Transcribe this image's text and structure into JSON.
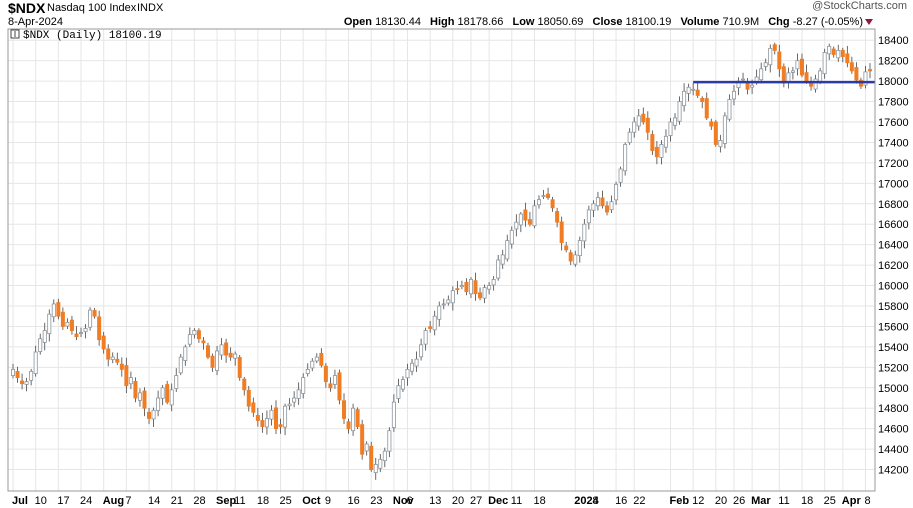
{
  "header": {
    "symbol": "$NDX",
    "name": "Nasdaq 100 Index",
    "exchange": "INDX",
    "date": "8-Apr-2024",
    "open_label": "Open",
    "open": "18130.44",
    "high_label": "High",
    "high": "18178.66",
    "low_label": "Low",
    "low": "18050.69",
    "close_label": "Close",
    "close": "18100.19",
    "volume_label": "Volume",
    "volume": "710.9M",
    "chg_label": "Chg",
    "chg": "-8.27 (-0.05%)",
    "watermark": "@StockCharts.com"
  },
  "legend": {
    "text": "$NDX (Daily) 18100.19"
  },
  "colors": {
    "up": "#8c959c",
    "down": "#f07c24",
    "hline": "#2b3aa8",
    "grid": "#e6e6e6",
    "border": "#999999",
    "chg": "#8b1a3b"
  },
  "chart_data": {
    "type": "candlestick",
    "title": "$NDX (Daily)",
    "ylim": [
      14000,
      18500
    ],
    "y_ticks": [
      14200,
      14400,
      14600,
      14800,
      15000,
      15200,
      15400,
      15600,
      15800,
      16000,
      16200,
      16400,
      16600,
      16800,
      17000,
      17200,
      17400,
      17600,
      17800,
      18000,
      18200,
      18400
    ],
    "x_ticks": [
      {
        "i": 0,
        "label": "Jul",
        "bold": true
      },
      {
        "i": 5,
        "label": "10"
      },
      {
        "i": 10,
        "label": "17"
      },
      {
        "i": 15,
        "label": "24"
      },
      {
        "i": 20,
        "label": "Aug",
        "bold": true
      },
      {
        "i": 25,
        "label": "7"
      },
      {
        "i": 30,
        "label": "14"
      },
      {
        "i": 35,
        "label": "21"
      },
      {
        "i": 40,
        "label": "28"
      },
      {
        "i": 45,
        "label": "Sep",
        "bold": true
      },
      {
        "i": 49,
        "label": "11"
      },
      {
        "i": 54,
        "label": "18"
      },
      {
        "i": 59,
        "label": "25"
      },
      {
        "i": 64,
        "label": "Oct",
        "bold": true
      },
      {
        "i": 69,
        "label": "9"
      },
      {
        "i": 74,
        "label": "16"
      },
      {
        "i": 79,
        "label": "23"
      },
      {
        "i": 84,
        "label": "Nov",
        "bold": true
      },
      {
        "i": 87,
        "label": "6"
      },
      {
        "i": 92,
        "label": "13"
      },
      {
        "i": 97,
        "label": "20"
      },
      {
        "i": 101,
        "label": "27"
      },
      {
        "i": 105,
        "label": "Dec",
        "bold": true
      },
      {
        "i": 110,
        "label": "11"
      },
      {
        "i": 115,
        "label": "18"
      },
      {
        "i": 124,
        "label": "2024",
        "bold": true
      },
      {
        "i": 128,
        "label": "8"
      },
      {
        "i": 133,
        "label": "16"
      },
      {
        "i": 137,
        "label": "22"
      },
      {
        "i": 145,
        "label": "Feb",
        "bold": true
      },
      {
        "i": 150,
        "label": "12"
      },
      {
        "i": 155,
        "label": "20"
      },
      {
        "i": 159,
        "label": "26"
      },
      {
        "i": 163,
        "label": "Mar",
        "bold": true
      },
      {
        "i": 169,
        "label": "11"
      },
      {
        "i": 174,
        "label": "18"
      },
      {
        "i": 179,
        "label": "25"
      },
      {
        "i": 183,
        "label": "Apr",
        "bold": true
      },
      {
        "i": 188,
        "label": "8"
      }
    ],
    "hline": {
      "value": 17990,
      "from_index": 150
    },
    "closes": [
      15180,
      15100,
      15040,
      15060,
      15160,
      15350,
      15480,
      15560,
      15720,
      15820,
      15700,
      15600,
      15640,
      15560,
      15500,
      15540,
      15580,
      15760,
      15700,
      15470,
      15380,
      15280,
      15300,
      15250,
      15180,
      15020,
      15100,
      14900,
      14950,
      14800,
      14700,
      14780,
      14900,
      15000,
      14860,
      14980,
      15120,
      15300,
      15400,
      15520,
      15560,
      15480,
      15440,
      15300,
      15200,
      15360,
      15420,
      15320,
      15300,
      15330,
      15100,
      14980,
      14820,
      14760,
      14680,
      14620,
      14700,
      14780,
      14600,
      14620,
      14820,
      14840,
      14900,
      14980,
      15100,
      15180,
      15260,
      15300,
      15220,
      15060,
      15000,
      15120,
      14880,
      14700,
      14600,
      14800,
      14620,
      14350,
      14450,
      14200,
      14250,
      14300,
      14380,
      14580,
      14860,
      15020,
      15080,
      15180,
      15240,
      15280,
      15420,
      15560,
      15580,
      15700,
      15800,
      15820,
      15860,
      15950,
      15960,
      16000,
      15940,
      16060,
      15920,
      15880,
      15980,
      16000,
      16060,
      16250,
      16300,
      16440,
      16540,
      16620,
      16700,
      16640,
      16600,
      16780,
      16840,
      16880,
      16860,
      16760,
      16620,
      16420,
      16350,
      16240,
      16300,
      16440,
      16600,
      16740,
      16800,
      16860,
      16780,
      16720,
      16820,
      16990,
      17140,
      17380,
      17500,
      17600,
      17660,
      17600,
      17500,
      17320,
      17260,
      17380,
      17460,
      17600,
      17640,
      17800,
      17900,
      17940,
      17920,
      17860,
      17800,
      17640,
      17560,
      17380,
      17420,
      17660,
      17820,
      17900,
      18000,
      18020,
      17920,
      17960,
      18040,
      18120,
      18180,
      18320,
      18300,
      18120,
      17980,
      18080,
      18100,
      18200,
      18060,
      18000,
      17950,
      18020,
      18100,
      18280,
      18340,
      18260,
      18300,
      18240,
      18180,
      18100,
      18010,
      17950,
      18090,
      18100
    ]
  }
}
